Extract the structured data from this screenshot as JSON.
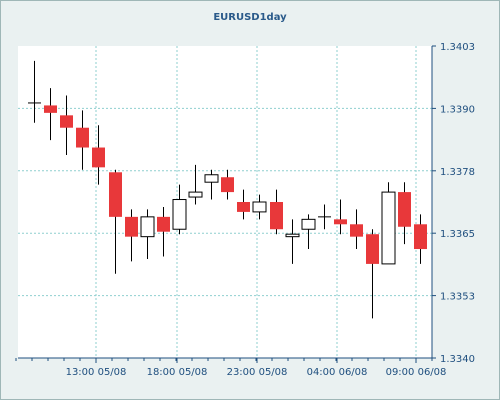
{
  "chart_data": {
    "type": "candlestick",
    "title": "EURUSD1day",
    "x_tick_labels": [
      "13:00 05/08",
      "18:00 05/08",
      "23:00 05/08",
      "04:00 06/08",
      "09:00 06/08"
    ],
    "y_tick_labels": [
      "1.3403",
      "1.3390",
      "1.3378",
      "1.3365",
      "1.3353",
      "1.3340"
    ],
    "ylim": [
      1.334,
      1.3403
    ],
    "grid": true,
    "colors": {
      "up": "#ffffff",
      "down": "#e8383a",
      "grid": "#8fcfcf",
      "axis": "#1f4f7f"
    },
    "candles": [
      {
        "open": 1.33915,
        "high": 1.34,
        "low": 1.33875,
        "close": 1.33915
      },
      {
        "open": 1.3391,
        "high": 1.33945,
        "low": 1.3384,
        "close": 1.33895
      },
      {
        "open": 1.3389,
        "high": 1.3393,
        "low": 1.3381,
        "close": 1.33865
      },
      {
        "open": 1.33865,
        "high": 1.339,
        "low": 1.3378,
        "close": 1.33825
      },
      {
        "open": 1.33825,
        "high": 1.3387,
        "low": 1.3375,
        "close": 1.33785
      },
      {
        "open": 1.33775,
        "high": 1.3378,
        "low": 1.3357,
        "close": 1.33685
      },
      {
        "open": 1.33685,
        "high": 1.337,
        "low": 1.33595,
        "close": 1.33645
      },
      {
        "open": 1.33645,
        "high": 1.337,
        "low": 1.336,
        "close": 1.33685
      },
      {
        "open": 1.33685,
        "high": 1.33705,
        "low": 1.33605,
        "close": 1.33655
      },
      {
        "open": 1.3366,
        "high": 1.3375,
        "low": 1.3365,
        "close": 1.3372
      },
      {
        "open": 1.33725,
        "high": 1.3379,
        "low": 1.3371,
        "close": 1.33735
      },
      {
        "open": 1.33755,
        "high": 1.3378,
        "low": 1.3372,
        "close": 1.3377
      },
      {
        "open": 1.33765,
        "high": 1.3378,
        "low": 1.3372,
        "close": 1.33735
      },
      {
        "open": 1.33715,
        "high": 1.3374,
        "low": 1.3368,
        "close": 1.33695
      },
      {
        "open": 1.33695,
        "high": 1.3373,
        "low": 1.3368,
        "close": 1.33715
      },
      {
        "open": 1.33715,
        "high": 1.3374,
        "low": 1.3365,
        "close": 1.3366
      },
      {
        "open": 1.33645,
        "high": 1.3368,
        "low": 1.3359,
        "close": 1.3365
      },
      {
        "open": 1.3366,
        "high": 1.3369,
        "low": 1.3362,
        "close": 1.3368
      },
      {
        "open": 1.33685,
        "high": 1.3371,
        "low": 1.3366,
        "close": 1.33685
      },
      {
        "open": 1.3368,
        "high": 1.3372,
        "low": 1.3365,
        "close": 1.3367
      },
      {
        "open": 1.3367,
        "high": 1.337,
        "low": 1.3362,
        "close": 1.33645
      },
      {
        "open": 1.3365,
        "high": 1.3366,
        "low": 1.3348,
        "close": 1.3359
      },
      {
        "open": 1.3359,
        "high": 1.33755,
        "low": 1.3359,
        "close": 1.33735
      },
      {
        "open": 1.33735,
        "high": 1.33755,
        "low": 1.3363,
        "close": 1.33665
      },
      {
        "open": 1.3367,
        "high": 1.3369,
        "low": 1.3359,
        "close": 1.3362
      }
    ]
  }
}
